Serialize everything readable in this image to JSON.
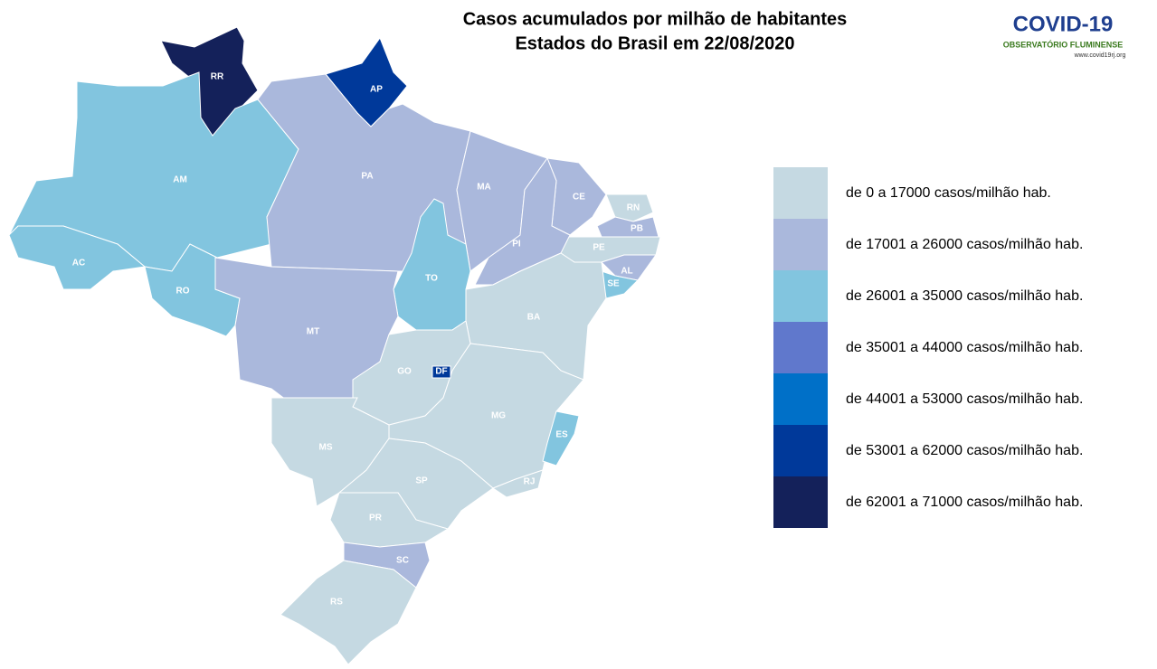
{
  "header": {
    "title_line_1": "Casos acumulados por milhão de habitantes",
    "title_line_2": "Estados do Brasil em 22/08/2020"
  },
  "logo": {
    "name": "COVID-19",
    "subtitle": "OBSERVATÓRIO FLUMINENSE",
    "url": "www.covid19rj.org"
  },
  "legend": [
    {
      "label": "de 0 a 17000 casos/milhão hab.",
      "color": "#c5d9e2"
    },
    {
      "label": "de 17001 a 26000 casos/milhão hab.",
      "color": "#aab8dc"
    },
    {
      "label": "de 26001 a 35000 casos/milhão hab.",
      "color": "#82c5df"
    },
    {
      "label": "de 35001 a 44000 casos/milhão hab.",
      "color": "#6078cc"
    },
    {
      "label": "de 44001 a 53000 casos/milhão hab.",
      "color": "#0070c8"
    },
    {
      "label": "de 53001 a 62000 casos/milhão hab.",
      "color": "#00399a"
    },
    {
      "label": "de 62001 a 71000 casos/milhão hab.",
      "color": "#14215a"
    }
  ],
  "states": [
    {
      "label": "RR",
      "color": "#14215a"
    },
    {
      "label": "AP",
      "color": "#00399a"
    },
    {
      "label": "AM",
      "color": "#82c5df"
    },
    {
      "label": "AC",
      "color": "#82c5df"
    },
    {
      "label": "RO",
      "color": "#82c5df"
    },
    {
      "label": "PA",
      "color": "#aab8dc"
    },
    {
      "label": "MA",
      "color": "#aab8dc"
    },
    {
      "label": "CE",
      "color": "#aab8dc"
    },
    {
      "label": "RN",
      "color": "#c5d9e2"
    },
    {
      "label": "PB",
      "color": "#aab8dc"
    },
    {
      "label": "PE",
      "color": "#c5d9e2"
    },
    {
      "label": "AL",
      "color": "#aab8dc"
    },
    {
      "label": "SE",
      "color": "#82c5df"
    },
    {
      "label": "PI",
      "color": "#aab8dc"
    },
    {
      "label": "TO",
      "color": "#82c5df"
    },
    {
      "label": "BA",
      "color": "#c5d9e2"
    },
    {
      "label": "MT",
      "color": "#aab8dc"
    },
    {
      "label": "GO",
      "color": "#c5d9e2"
    },
    {
      "label": "MG",
      "color": "#c5d9e2"
    },
    {
      "label": "ES",
      "color": "#82c5df"
    },
    {
      "label": "MS",
      "color": "#c5d9e2"
    },
    {
      "label": "SP",
      "color": "#c5d9e2"
    },
    {
      "label": "RJ",
      "color": "#c5d9e2"
    },
    {
      "label": "PR",
      "color": "#c5d9e2"
    },
    {
      "label": "SC",
      "color": "#aab8dc"
    },
    {
      "label": "RS",
      "color": "#c5d9e2"
    },
    {
      "label": "DF",
      "color": "#00399a"
    }
  ]
}
